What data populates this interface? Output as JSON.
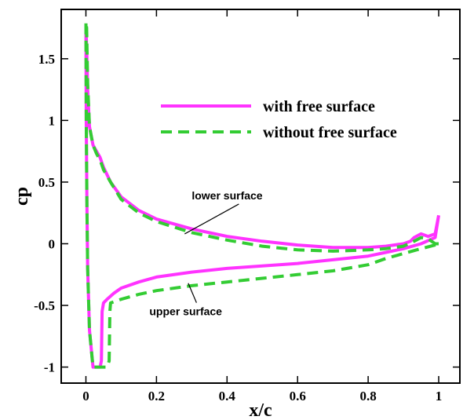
{
  "chart_data": {
    "type": "line",
    "xlabel": "x/c",
    "ylabel": "cp",
    "xlim": [
      -0.07,
      1.06
    ],
    "ylim": [
      -1.13,
      1.9
    ],
    "xticks": [
      0,
      0.2,
      0.4,
      0.6,
      0.8,
      1
    ],
    "xtick_labels": [
      "0",
      "0.2",
      "0.4",
      "0.6",
      "0.8",
      "1"
    ],
    "yticks": [
      -1,
      -0.5,
      0,
      0.5,
      1,
      1.5
    ],
    "ytick_labels": [
      "-1",
      "-0.5",
      "0",
      "0.5",
      "1",
      "1.5"
    ],
    "grid": false,
    "legend_position": "top-right",
    "series": [
      {
        "name": "with free surface",
        "color": "#ff33ff",
        "dash": "solid",
        "x": [
          1.0,
          0.99,
          0.97,
          0.95,
          0.93,
          0.92,
          0.9,
          0.85,
          0.8,
          0.7,
          0.6,
          0.5,
          0.4,
          0.3,
          0.2,
          0.15,
          0.1,
          0.07,
          0.05,
          0.04,
          0.03,
          0.02,
          0.01,
          0.005,
          0.002,
          0.0,
          0.001,
          0.003,
          0.005,
          0.01,
          0.02,
          0.04,
          0.044,
          0.046,
          0.05,
          0.06,
          0.08,
          0.1,
          0.15,
          0.2,
          0.3,
          0.4,
          0.5,
          0.6,
          0.7,
          0.8,
          0.85,
          0.9,
          0.95,
          0.99,
          1.0
        ],
        "y": [
          0.23,
          0.08,
          0.06,
          0.08,
          0.05,
          0.02,
          0.0,
          -0.02,
          -0.03,
          -0.03,
          -0.01,
          0.02,
          0.06,
          0.12,
          0.2,
          0.27,
          0.38,
          0.5,
          0.62,
          0.7,
          0.75,
          0.8,
          0.95,
          1.25,
          1.6,
          1.75,
          1.0,
          0.3,
          -0.2,
          -0.7,
          -1.0,
          -1.0,
          -0.95,
          -0.55,
          -0.48,
          -0.45,
          -0.4,
          -0.36,
          -0.31,
          -0.27,
          -0.23,
          -0.2,
          -0.18,
          -0.16,
          -0.13,
          -0.1,
          -0.07,
          -0.04,
          0.0,
          0.05,
          0.23
        ]
      },
      {
        "name": "without free surface",
        "color": "#33cc33",
        "dash": "dashed",
        "x": [
          1.0,
          0.99,
          0.97,
          0.95,
          0.93,
          0.9,
          0.85,
          0.8,
          0.7,
          0.6,
          0.5,
          0.4,
          0.3,
          0.2,
          0.15,
          0.1,
          0.07,
          0.05,
          0.04,
          0.03,
          0.02,
          0.01,
          0.005,
          0.002,
          0.0,
          0.001,
          0.003,
          0.005,
          0.01,
          0.02,
          0.04,
          0.06,
          0.066,
          0.068,
          0.07,
          0.08,
          0.1,
          0.15,
          0.2,
          0.3,
          0.4,
          0.5,
          0.6,
          0.7,
          0.8,
          0.85,
          0.9,
          0.95,
          0.99,
          1.0
        ],
        "y": [
          0.0,
          0.0,
          0.04,
          0.05,
          0.02,
          -0.02,
          -0.04,
          -0.05,
          -0.06,
          -0.05,
          -0.02,
          0.03,
          0.09,
          0.18,
          0.25,
          0.36,
          0.5,
          0.6,
          0.68,
          0.73,
          0.8,
          0.95,
          1.3,
          1.75,
          1.8,
          1.0,
          0.3,
          -0.2,
          -0.7,
          -1.0,
          -1.0,
          -1.0,
          -0.95,
          -0.55,
          -0.48,
          -0.47,
          -0.45,
          -0.41,
          -0.38,
          -0.34,
          -0.31,
          -0.28,
          -0.25,
          -0.22,
          -0.17,
          -0.12,
          -0.08,
          -0.04,
          -0.01,
          0.0
        ]
      }
    ],
    "annotations": [
      {
        "text": "lower surface",
        "x": 0.3,
        "y": 0.36,
        "arrow_to": [
          0.28,
          0.08
        ]
      },
      {
        "text": "upper surface",
        "x": 0.18,
        "y": -0.58,
        "arrow_to": [
          0.29,
          -0.32
        ]
      }
    ]
  }
}
